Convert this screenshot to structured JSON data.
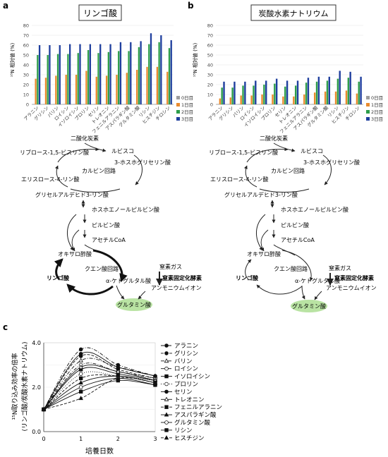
{
  "panel_labels": {
    "a": "a",
    "b": "b",
    "c": "c"
  },
  "colors": {
    "day0": "#9e9e9e",
    "day1": "#e88a2e",
    "day2": "#2e9e4a",
    "day3": "#1f3f9e",
    "glutamine": "#b9e3a3"
  },
  "amino_acids": [
    "アラニン",
    "グリシン",
    "バリン",
    "ロイシン",
    "イソロイシン",
    "プロリン",
    "セリン",
    "トレオニン",
    "フェニルアラニン",
    "アスパラギン酸",
    "グルタミン酸",
    "リシン",
    "ヒスチジン",
    "チロシン"
  ],
  "chart_data": [
    {
      "type": "bar",
      "title": "リンゴ酸",
      "ylabel": "¹⁵N 相対値 (%)",
      "ylim": [
        0,
        80
      ],
      "yticks": [
        0,
        10,
        20,
        30,
        40,
        50,
        60,
        70,
        80
      ],
      "categories": [
        "アラニン",
        "グリシン",
        "バリン",
        "ロイシン",
        "イソロイシン",
        "プロリン",
        "セリン",
        "トレオニン",
        "フェニルアラニン",
        "アスパラギン酸",
        "グルタミン酸",
        "リシン",
        "ヒスチジン",
        "チロシン"
      ],
      "series": [
        {
          "name": "0日目",
          "values": [
            0.4,
            0.4,
            0.4,
            0.4,
            0.4,
            0.4,
            0.4,
            0.4,
            0.4,
            0.4,
            0.4,
            0.4,
            0.4,
            0.4
          ]
        },
        {
          "name": "1日目",
          "values": [
            26,
            27,
            29,
            30,
            30,
            34,
            28,
            29,
            30,
            32,
            35,
            38,
            38,
            33
          ]
        },
        {
          "name": "2日目",
          "values": [
            50,
            50,
            51,
            51,
            52,
            55,
            52,
            53,
            54,
            54,
            58,
            61,
            63,
            57
          ]
        },
        {
          "name": "3日目",
          "values": [
            60,
            60,
            60,
            61,
            61,
            61,
            61,
            61,
            63,
            63,
            64,
            72,
            70,
            65
          ]
        }
      ],
      "legend": "right"
    },
    {
      "type": "bar",
      "title": "炭酸水素ナトリウム",
      "ylabel": "¹⁵N 相対値 (%)",
      "ylim": [
        0,
        80
      ],
      "yticks": [
        0,
        10,
        20,
        30,
        40,
        50,
        60,
        70,
        80
      ],
      "categories": [
        "アラニン",
        "グリシン",
        "バリン",
        "ロイシン",
        "イソロイシン",
        "プロリン",
        "セリン",
        "トレオニン",
        "フェニルアラニン",
        "アスパラギン酸",
        "グルタミン酸",
        "リシン",
        "ヒスチジン",
        "チロシン"
      ],
      "series": [
        {
          "name": "0日目",
          "values": [
            0.4,
            0.4,
            0.4,
            0.4,
            0.4,
            0.4,
            0.4,
            0.4,
            0.4,
            0.4,
            0.4,
            0.4,
            0.4,
            0.4
          ]
        },
        {
          "name": "1日目",
          "values": [
            6,
            7,
            9,
            9,
            10,
            10,
            8,
            8,
            10,
            12,
            13,
            13,
            14,
            11
          ]
        },
        {
          "name": "2日目",
          "values": [
            17,
            17,
            19,
            19,
            20,
            21,
            18,
            19,
            22,
            23,
            24,
            26,
            27,
            23
          ]
        },
        {
          "name": "3日目",
          "values": [
            23,
            23,
            23,
            24,
            24,
            26,
            24,
            24,
            27,
            28,
            28,
            34,
            33,
            28
          ]
        }
      ],
      "legend": "right"
    },
    {
      "type": "line",
      "xlabel": "培養日数",
      "ylabel": "¹⁵N取り込み効率の倍率",
      "ylabel2": "(リンゴ酸/炭酸水素ナトリウム)",
      "x": [
        0,
        1,
        2,
        3
      ],
      "xlim": [
        0,
        3
      ],
      "ylim": [
        0,
        4.0
      ],
      "yticks": [
        "0.0",
        "2.0",
        "4.0"
      ],
      "series": [
        {
          "name": "アラニン",
          "marker": "circle-filled",
          "dash": "dashdot",
          "values": [
            1.0,
            3.7,
            3.0,
            2.5
          ]
        },
        {
          "name": "グリシン",
          "marker": "circle-filled",
          "dash": "dashed",
          "values": [
            1.0,
            3.4,
            2.8,
            2.4
          ]
        },
        {
          "name": "バリン",
          "marker": "triangle-open",
          "dash": "dashdot",
          "values": [
            1.0,
            3.2,
            2.9,
            2.5
          ]
        },
        {
          "name": "ロイシン",
          "marker": "circle-open",
          "dash": "dashdot",
          "values": [
            1.0,
            3.0,
            2.7,
            2.4
          ]
        },
        {
          "name": "イソロイシン",
          "marker": "square-filled",
          "dash": "solid",
          "values": [
            1.0,
            2.8,
            2.6,
            2.3
          ]
        },
        {
          "name": "プロリン",
          "marker": "circle-open",
          "dash": "dotted",
          "values": [
            1.0,
            2.6,
            2.5,
            2.3
          ]
        },
        {
          "name": "セリン",
          "marker": "circle-filled",
          "dash": "solid",
          "values": [
            1.0,
            3.5,
            2.9,
            2.5
          ]
        },
        {
          "name": "トレオニン",
          "marker": "triangle-open",
          "dash": "solid",
          "values": [
            1.0,
            2.9,
            2.7,
            2.3
          ]
        },
        {
          "name": "フェニルアラニン",
          "marker": "square-filled",
          "dash": "dashed",
          "values": [
            1.0,
            2.4,
            2.5,
            2.2
          ]
        },
        {
          "name": "アスパラギン酸",
          "marker": "triangle-filled",
          "dash": "solid",
          "values": [
            1.0,
            2.2,
            2.5,
            2.2
          ]
        },
        {
          "name": "グルタミン酸",
          "marker": "circle-open",
          "dash": "solid",
          "values": [
            1.0,
            2.0,
            2.4,
            2.1
          ]
        },
        {
          "name": "リシン",
          "marker": "square-filled",
          "dash": "solid",
          "values": [
            1.0,
            1.8,
            2.3,
            2.1
          ]
        },
        {
          "name": "ヒスチジン",
          "marker": "triangle-filled",
          "dash": "dashed",
          "values": [
            1.0,
            1.5,
            2.4,
            2.2
          ]
        }
      ],
      "legend": "right"
    }
  ],
  "pathway": {
    "co2": "二酸化炭素",
    "rubisco": "ルビスコ",
    "rubp": "リブロース-1,5-ビスリン酸",
    "pga": "3-ホスホグリセリン酸",
    "calvin": "カルビン回路",
    "e4p": "エリスロース-4-リン酸",
    "g3p": "グリセルアルデヒド3-リン酸",
    "pep": "ホスホエノールピルビン酸",
    "pyruvate": "ピルビン酸",
    "acetylcoa": "アセチルCoA",
    "oaa": "オキサロ酢酸",
    "tca": "クエン酸回路",
    "malate": "リンゴ酸",
    "akg": "α-ケトグルタル酸",
    "n2": "窒素ガス",
    "nitrogenase": "窒素固定化酵素",
    "ammonium": "アンモニウムイオン",
    "glutamate": "グルタミン酸"
  }
}
